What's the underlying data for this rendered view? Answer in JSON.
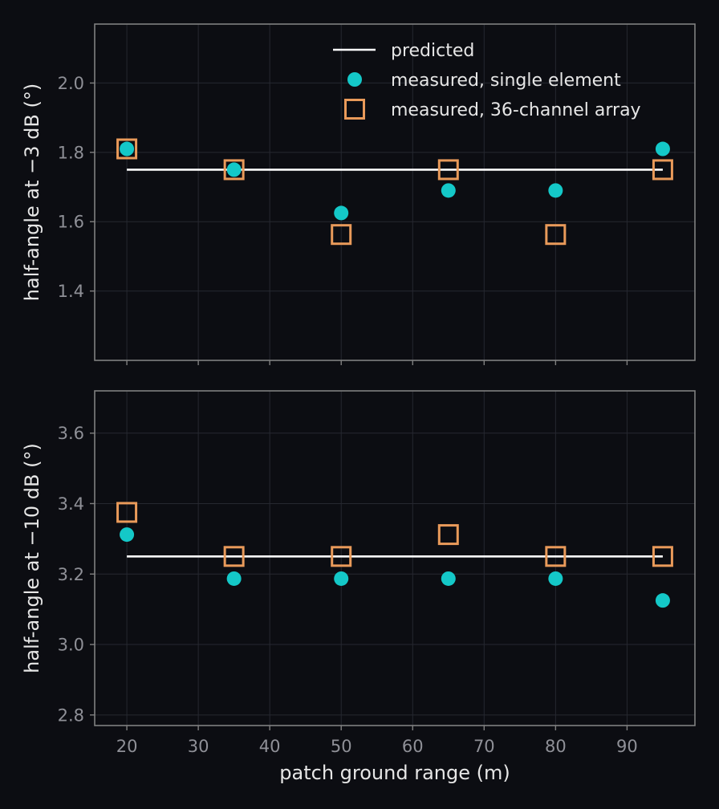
{
  "chart_data": [
    {
      "type": "scatter",
      "ylabel": "half-angle at −3 dB (°)",
      "xlabel": "",
      "xlim": [
        15.5,
        99.5
      ],
      "ylim": [
        1.2,
        2.17
      ],
      "yticks": [
        1.4,
        1.6,
        1.8,
        2.0
      ],
      "xticks": [
        20,
        30,
        40,
        50,
        60,
        70,
        80,
        90
      ],
      "show_xticklabels": false,
      "grid": true,
      "legend": "top-right",
      "series": [
        {
          "name": "predicted",
          "kind": "line",
          "color": "#ffffff",
          "x": [
            20,
            95
          ],
          "y": [
            1.75,
            1.75
          ]
        },
        {
          "name": "measured, single element",
          "kind": "circle",
          "color": "#14c8c8",
          "x": [
            20,
            35,
            50,
            65,
            80,
            95
          ],
          "y": [
            1.81,
            1.75,
            1.625,
            1.69,
            1.69,
            1.81
          ]
        },
        {
          "name": "measured, 36-channel array",
          "kind": "square",
          "color": "#e99a5a",
          "x": [
            20,
            35,
            50,
            65,
            80,
            95
          ],
          "y": [
            1.81,
            1.75,
            1.563,
            1.75,
            1.563,
            1.75
          ]
        }
      ]
    },
    {
      "type": "scatter",
      "ylabel": "half-angle at −10 dB (°)",
      "xlabel": "patch ground range (m)",
      "xlim": [
        15.5,
        99.5
      ],
      "ylim": [
        2.77,
        3.72
      ],
      "yticks": [
        2.8,
        3.0,
        3.2,
        3.4,
        3.6
      ],
      "xticks": [
        20,
        30,
        40,
        50,
        60,
        70,
        80,
        90
      ],
      "show_xticklabels": true,
      "grid": true,
      "series": [
        {
          "name": "predicted",
          "kind": "line",
          "color": "#ffffff",
          "x": [
            20,
            95
          ],
          "y": [
            3.25,
            3.25
          ]
        },
        {
          "name": "measured, single element",
          "kind": "circle",
          "color": "#14c8c8",
          "x": [
            20,
            35,
            50,
            65,
            80,
            95
          ],
          "y": [
            3.312,
            3.187,
            3.187,
            3.187,
            3.187,
            3.125
          ]
        },
        {
          "name": "measured, 36-channel array",
          "kind": "square",
          "color": "#e99a5a",
          "x": [
            20,
            35,
            50,
            65,
            80,
            95
          ],
          "y": [
            3.375,
            3.25,
            3.25,
            3.312,
            3.25,
            3.25
          ]
        }
      ]
    }
  ]
}
